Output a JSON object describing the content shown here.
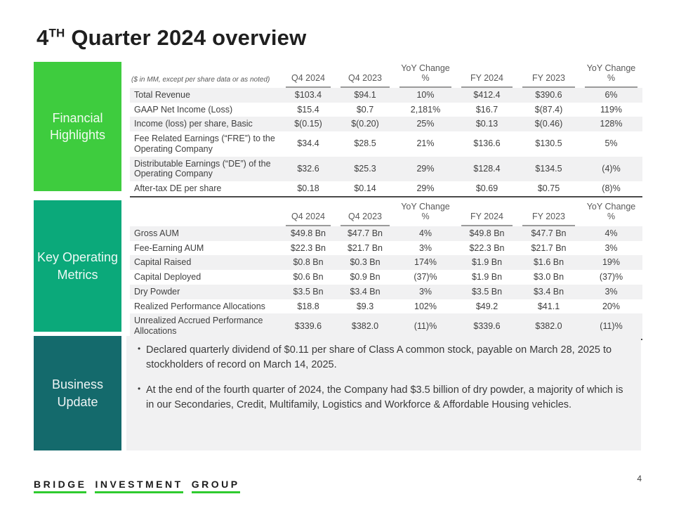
{
  "title": {
    "number": "4",
    "superscript": "TH",
    "rest": " Quarter 2024 overview"
  },
  "colors": {
    "financial_box": "#3ECC3E",
    "metrics_box": "#0BA97A",
    "business_box": "#146A6C",
    "row_shade": "#F1F1F2",
    "logo_underline": "#2FCB2F"
  },
  "sections": [
    {
      "label": "Financial Highlights"
    },
    {
      "label": "Key Operating Metrics"
    },
    {
      "label": "Business Update"
    }
  ],
  "financial_table": {
    "note": "($ in MM, except per share data or as noted)",
    "columns": [
      "Q4 2024",
      "Q4 2023",
      "YoY Change %",
      "FY 2024",
      "FY 2023",
      "YoY Change %"
    ],
    "rows": [
      {
        "label": "Total Revenue",
        "values": [
          "$103.4",
          "$94.1",
          "10%",
          "$412.4",
          "$390.6",
          "6%"
        ]
      },
      {
        "label": "GAAP Net Income (Loss)",
        "values": [
          "$15.4",
          "$0.7",
          "2,181%",
          "$16.7",
          "$(87.4)",
          "119%"
        ]
      },
      {
        "label": "Income (loss) per share, Basic",
        "values": [
          "$(0.15)",
          "$(0.20)",
          "25%",
          "$0.13",
          "$(0.46)",
          "128%"
        ]
      },
      {
        "label": "Fee Related Earnings (“FRE”) to the Operating Company",
        "values": [
          "$34.4",
          "$28.5",
          "21%",
          "$136.6",
          "$130.5",
          "5%"
        ]
      },
      {
        "label": "Distributable Earnings (“DE”) of the Operating Company",
        "values": [
          "$32.6",
          "$25.3",
          "29%",
          "$128.4",
          "$134.5",
          "(4)%"
        ]
      },
      {
        "label": "After-tax DE per share",
        "values": [
          "$0.18",
          "$0.14",
          "29%",
          "$0.69",
          "$0.75",
          "(8)%"
        ]
      }
    ]
  },
  "metrics_table": {
    "columns": [
      "Q4 2024",
      "Q4 2023",
      "YoY Change %",
      "FY 2024",
      "FY 2023",
      "YoY Change %"
    ],
    "rows": [
      {
        "label": "Gross AUM",
        "values": [
          "$49.8 Bn",
          "$47.7 Bn",
          "4%",
          "$49.8 Bn",
          "$47.7 Bn",
          "4%"
        ]
      },
      {
        "label": "Fee-Earning AUM",
        "values": [
          "$22.3 Bn",
          "$21.7 Bn",
          "3%",
          "$22.3 Bn",
          "$21.7 Bn",
          "3%"
        ]
      },
      {
        "label": "Capital Raised",
        "values": [
          "$0.8 Bn",
          "$0.3 Bn",
          "174%",
          "$1.9 Bn",
          "$1.6 Bn",
          "19%"
        ]
      },
      {
        "label": "Capital Deployed",
        "values": [
          "$0.6 Bn",
          "$0.9 Bn",
          "(37)%",
          "$1.9 Bn",
          "$3.0 Bn",
          "(37)%"
        ]
      },
      {
        "label": "Dry Powder",
        "values": [
          "$3.5 Bn",
          "$3.4 Bn",
          "3%",
          "$3.5 Bn",
          "$3.4 Bn",
          "3%"
        ]
      },
      {
        "label": "Realized Performance Allocations",
        "values": [
          "$18.8",
          "$9.3",
          "102%",
          "$49.2",
          "$41.1",
          "20%"
        ]
      },
      {
        "label": "Unrealized Accrued Performance Allocations",
        "values": [
          "$339.6",
          "$382.0",
          "(11)%",
          "$339.6",
          "$382.0",
          "(11)%"
        ]
      }
    ]
  },
  "business_update": {
    "bullets": [
      "Declared quarterly dividend of $0.11 per share of Class A common stock, payable on March 28, 2025 to stockholders of record on March 14, 2025.",
      "At the end of the fourth quarter of 2024, the Company had $3.5 billion of dry powder, a majority of which is in our Secondaries, Credit, Multifamily, Logistics and Workforce & Affordable Housing vehicles."
    ]
  },
  "footer": {
    "logo_words": [
      "BRIDGE",
      "INVESTMENT",
      "GROUP"
    ],
    "page_number": "4"
  }
}
